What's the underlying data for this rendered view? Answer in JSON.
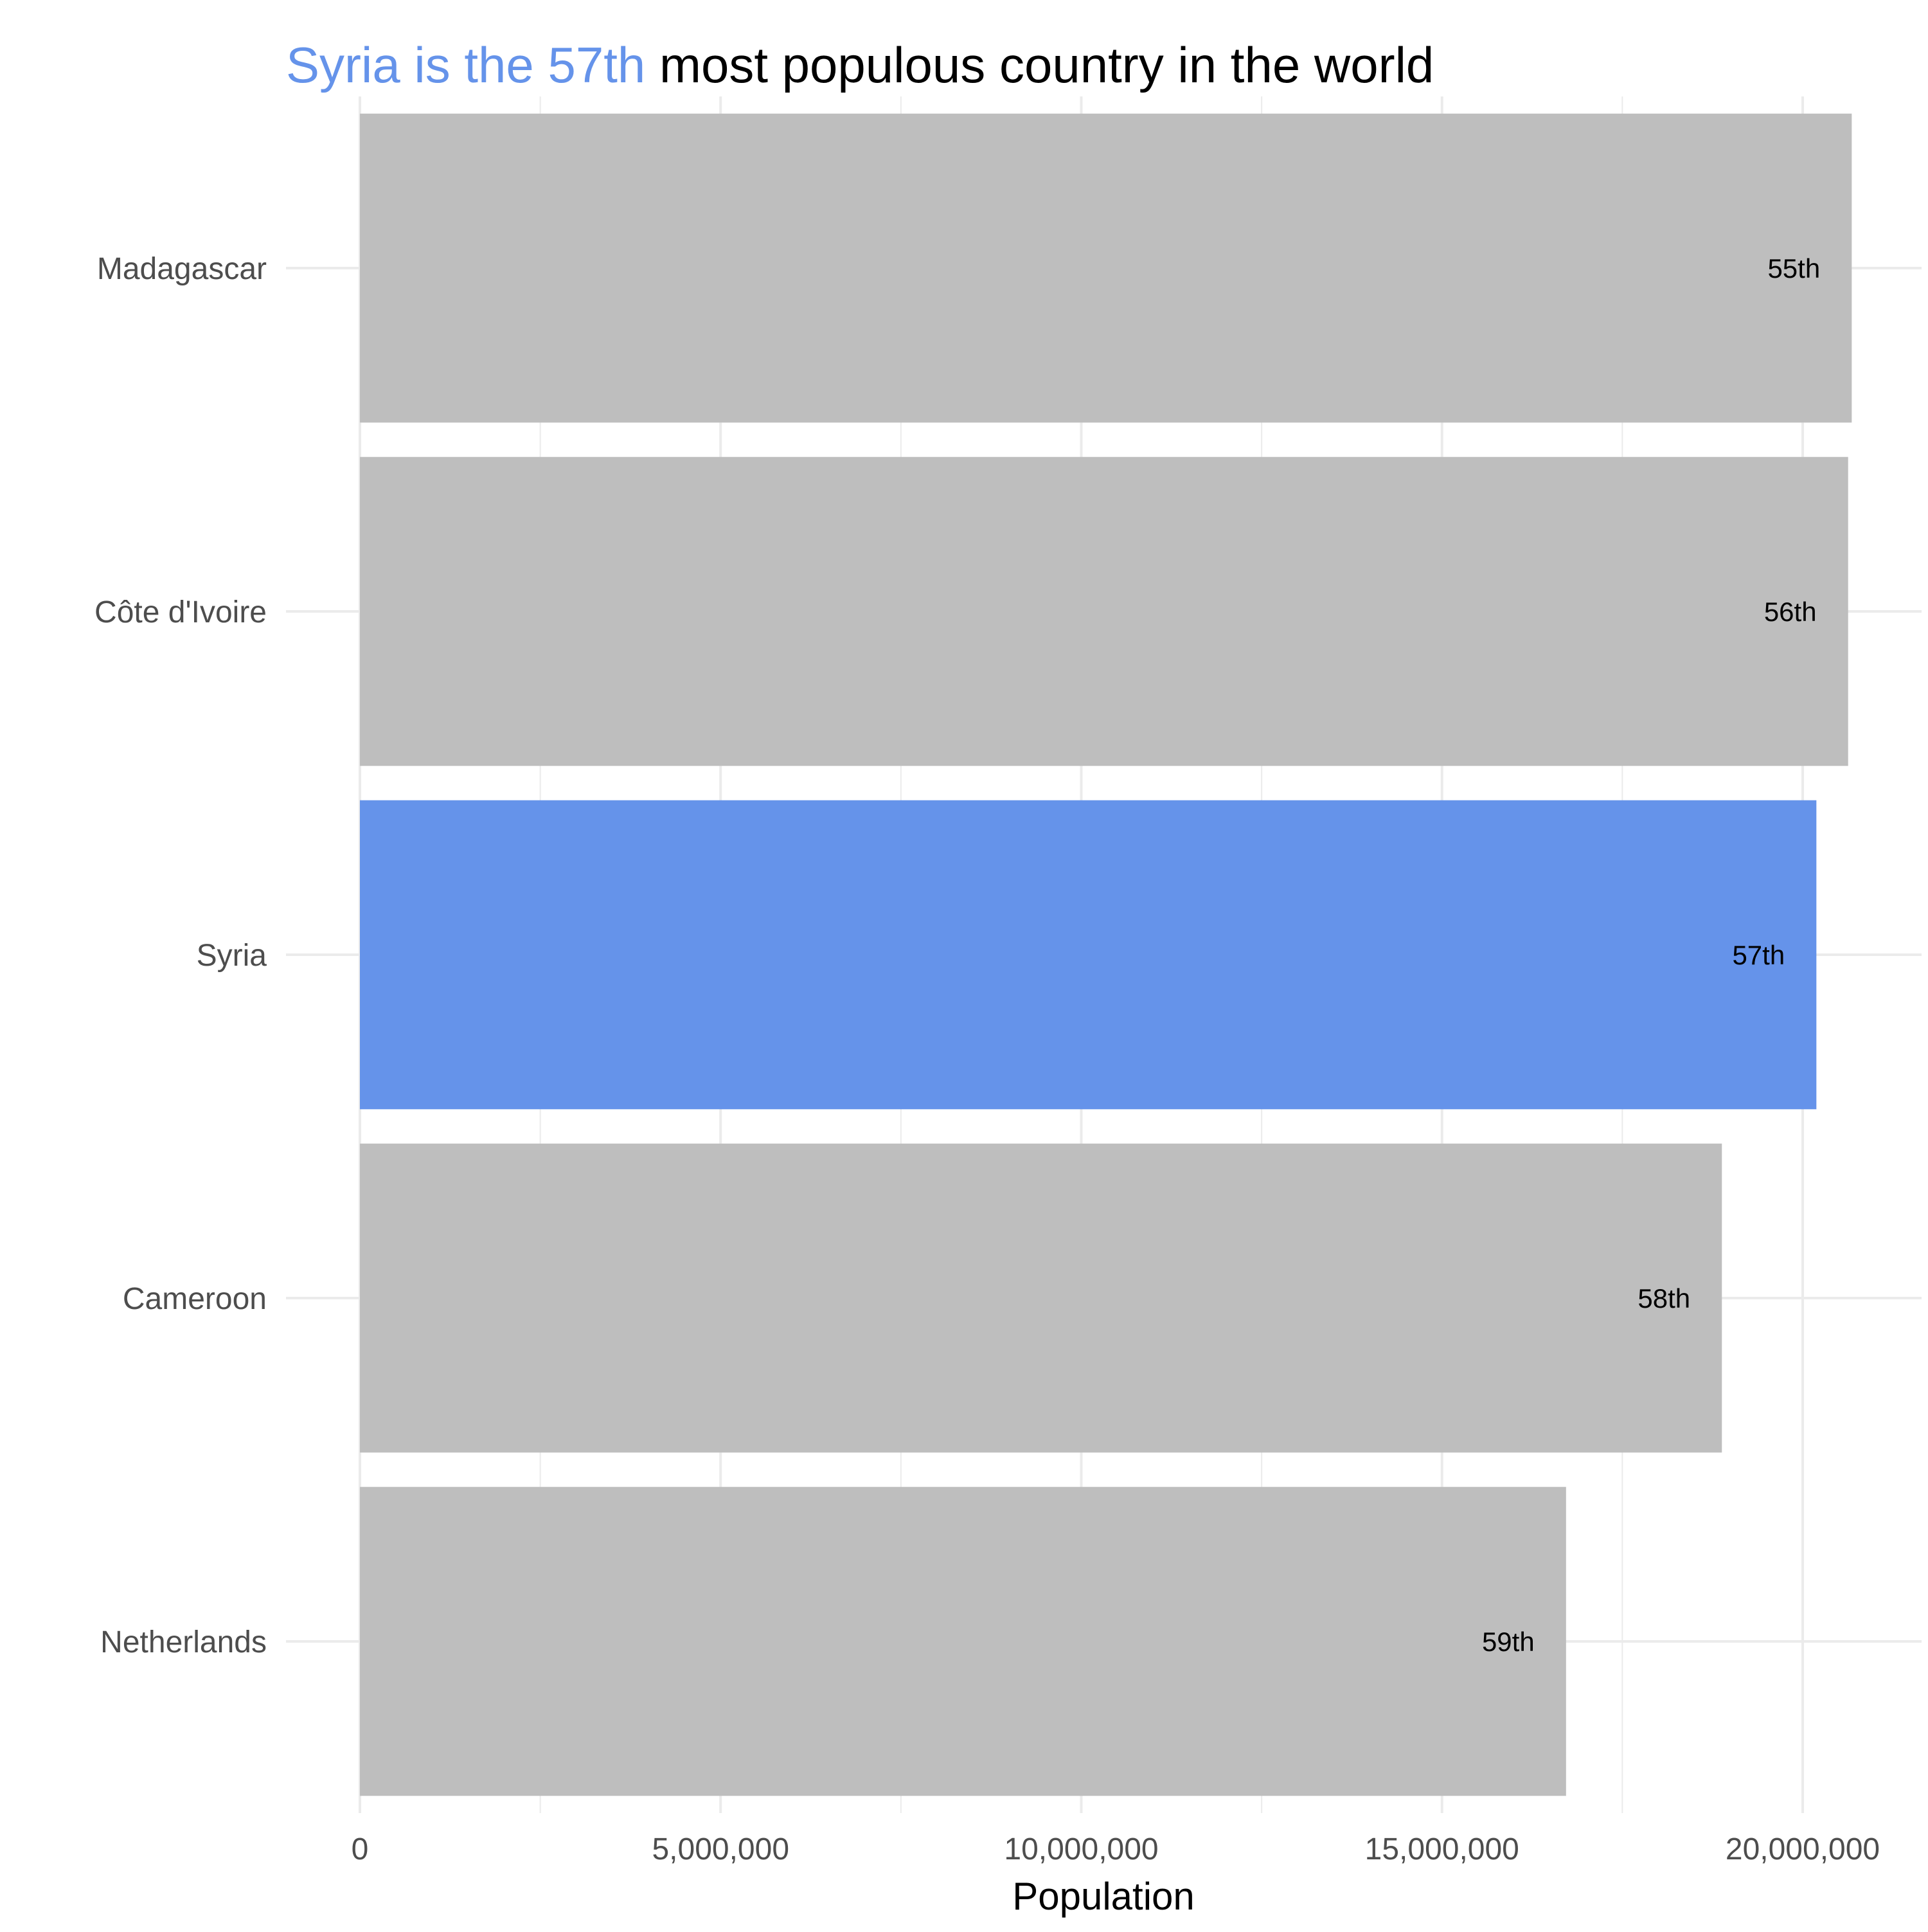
{
  "chart_data": {
    "type": "bar",
    "orientation": "horizontal",
    "title": {
      "highlight": "Syria is the 57th",
      "rest": " most populous country in the world"
    },
    "categories": [
      "Madagascar",
      "Côte d'Ivoire",
      "Syria",
      "Cameroon",
      "Netherlands"
    ],
    "values": [
      20680000,
      20630000,
      20190000,
      18880000,
      16720000
    ],
    "labels": [
      "55th",
      "56th",
      "57th",
      "58th",
      "59th"
    ],
    "highlighted": "Syria",
    "xlabel": "Population",
    "ylabel": "",
    "xlim": [
      0,
      21500000
    ],
    "xticks": [
      0,
      5000000,
      10000000,
      15000000,
      20000000
    ],
    "xtick_labels": [
      "0",
      "5,000,000",
      "10,000,000",
      "15,000,000",
      "20,000,000"
    ],
    "grid": true,
    "colors": {
      "highlight": "#6593EA",
      "default": "#BEBEBE",
      "grid": "#EBEBEB"
    }
  }
}
